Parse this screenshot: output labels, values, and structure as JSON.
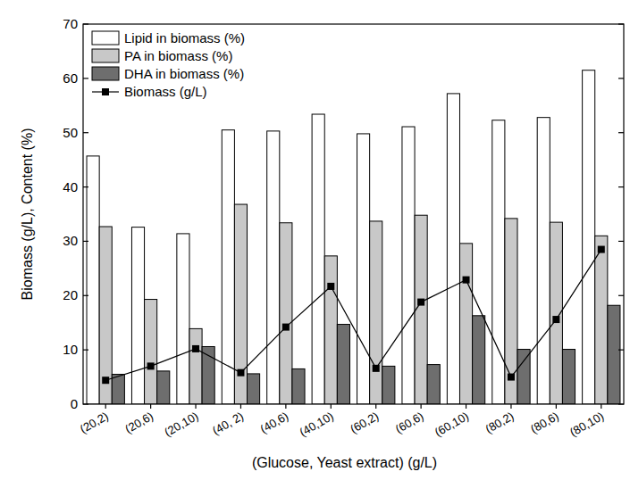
{
  "chart_data": {
    "type": "bar",
    "x_label": "(Glucose, Yeast extract) (g/L)",
    "y_label": "Biomass (g/L), Content (%)",
    "categories": [
      "(20,2)",
      "(20,6)",
      "(20,10)",
      "(40, 2)",
      "(40,6)",
      "(40,10)",
      "(60,2)",
      "(60,6)",
      "(60,10)",
      "(80,2)",
      "(80,6)",
      "(80,10)"
    ],
    "series": [
      {
        "name": "Lipid in biomass (%)",
        "color": "#ffffff",
        "values": [
          45.7,
          32.6,
          31.4,
          50.5,
          50.3,
          53.4,
          49.8,
          51.1,
          57.2,
          52.3,
          52.8,
          61.5
        ]
      },
      {
        "name": "PA in biomass (%)",
        "color": "#c8c8c8",
        "values": [
          32.7,
          19.3,
          13.9,
          36.8,
          33.4,
          27.3,
          33.7,
          34.8,
          29.6,
          34.2,
          33.5,
          31.0
        ]
      },
      {
        "name": "DHA in biomass (%)",
        "color": "#6e6e6e",
        "values": [
          5.5,
          6.1,
          10.6,
          5.6,
          6.5,
          14.7,
          7.0,
          7.3,
          16.3,
          10.1,
          10.1,
          18.2
        ]
      },
      {
        "name": "Biomass (g/L)",
        "type": "line",
        "color": "#000000",
        "marker": "square",
        "values": [
          4.4,
          7.0,
          10.2,
          5.8,
          14.2,
          21.7,
          6.6,
          18.8,
          22.9,
          5.0,
          15.6,
          28.5
        ]
      }
    ],
    "ylim": [
      0,
      70
    ],
    "yticks": [
      0,
      10,
      20,
      30,
      40,
      50,
      60,
      70
    ],
    "legend": "upper left",
    "grid": false
  }
}
